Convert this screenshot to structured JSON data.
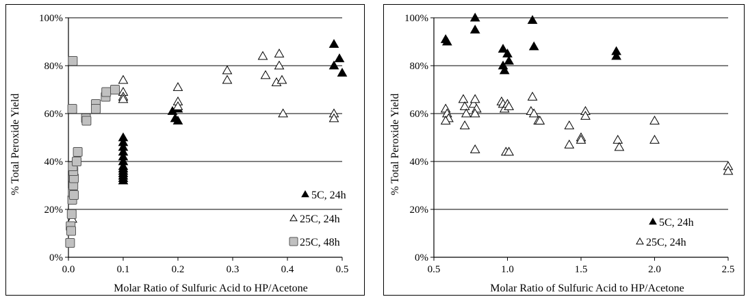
{
  "chart_data": [
    {
      "type": "scatter",
      "xlabel": "Molar Ratio of Sulfuric Acid to HP/Acetone",
      "ylabel": "% Total Peroxide Yield",
      "xlim": [
        0,
        0.5
      ],
      "ylim": [
        0,
        100
      ],
      "x_ticks": [
        "0.0",
        "0.1",
        "0.2",
        "0.3",
        "0.4",
        "0.5"
      ],
      "y_ticks": [
        "0%",
        "20%",
        "40%",
        "60%",
        "80%",
        "100%"
      ],
      "grid": "horizontal",
      "legend_position": "bottom-right",
      "series": [
        {
          "name": "5C, 24h",
          "marker": "filled-triangle",
          "color": "#000000",
          "points": [
            [
              0.1,
              50
            ],
            [
              0.1,
              48
            ],
            [
              0.1,
              46
            ],
            [
              0.1,
              44
            ],
            [
              0.1,
              42
            ],
            [
              0.1,
              40
            ],
            [
              0.1,
              38
            ],
            [
              0.1,
              37
            ],
            [
              0.1,
              36
            ],
            [
              0.1,
              35
            ],
            [
              0.1,
              34
            ],
            [
              0.1,
              33
            ],
            [
              0.1,
              32
            ],
            [
              0.19,
              61
            ],
            [
              0.195,
              58
            ],
            [
              0.2,
              57
            ],
            [
              0.2,
              62
            ],
            [
              0.485,
              89
            ],
            [
              0.485,
              80
            ],
            [
              0.495,
              83
            ],
            [
              0.5,
              77
            ]
          ]
        },
        {
          "name": "25C, 24h",
          "marker": "open-triangle",
          "color": "#000000",
          "points": [
            [
              0.007,
              16
            ],
            [
              0.1,
              74
            ],
            [
              0.1,
              69
            ],
            [
              0.1,
              67
            ],
            [
              0.1,
              66
            ],
            [
              0.2,
              71
            ],
            [
              0.2,
              65
            ],
            [
              0.2,
              63
            ],
            [
              0.29,
              78
            ],
            [
              0.29,
              74
            ],
            [
              0.355,
              84
            ],
            [
              0.36,
              76
            ],
            [
              0.385,
              85
            ],
            [
              0.385,
              80
            ],
            [
              0.38,
              73
            ],
            [
              0.39,
              74
            ],
            [
              0.392,
              60
            ],
            [
              0.485,
              60
            ],
            [
              0.485,
              58
            ]
          ]
        },
        {
          "name": "25C, 48h",
          "marker": "gray-square",
          "color": "#c0c0c0",
          "points": [
            [
              0.003,
              6
            ],
            [
              0.004,
              13
            ],
            [
              0.005,
              11
            ],
            [
              0.006,
              18
            ],
            [
              0.007,
              24
            ],
            [
              0.008,
              27
            ],
            [
              0.009,
              30
            ],
            [
              0.01,
              33
            ],
            [
              0.009,
              36
            ],
            [
              0.008,
              38
            ],
            [
              0.01,
              26
            ],
            [
              0.008,
              82
            ],
            [
              0.007,
              62
            ],
            [
              0.015,
              40
            ],
            [
              0.017,
              44
            ],
            [
              0.032,
              58
            ],
            [
              0.033,
              57
            ],
            [
              0.05,
              64
            ],
            [
              0.05,
              62
            ],
            [
              0.068,
              67
            ],
            [
              0.069,
              69
            ],
            [
              0.085,
              70
            ]
          ]
        }
      ]
    },
    {
      "type": "scatter",
      "xlabel": "Molar Ratio of Sulfuric Acid to HP/Acetone",
      "ylabel": "% Total Peroxide Yield",
      "xlim": [
        0.5,
        2.5
      ],
      "ylim": [
        0,
        100
      ],
      "x_ticks": [
        "0.5",
        "1.0",
        "1.5",
        "2.0",
        "2.5"
      ],
      "y_ticks": [
        "0%",
        "20%",
        "40%",
        "60%",
        "80%",
        "100%"
      ],
      "grid": "horizontal",
      "legend_position": "bottom-right",
      "series": [
        {
          "name": "5C, 24h",
          "marker": "filled-triangle",
          "color": "#000000",
          "points": [
            [
              0.58,
              91
            ],
            [
              0.59,
              90
            ],
            [
              0.78,
              100
            ],
            [
              0.78,
              95
            ],
            [
              0.97,
              87
            ],
            [
              0.97,
              80
            ],
            [
              0.98,
              78
            ],
            [
              1.0,
              85
            ],
            [
              1.01,
              82
            ],
            [
              1.17,
              99
            ],
            [
              1.18,
              88
            ],
            [
              1.74,
              86
            ],
            [
              1.74,
              84
            ]
          ]
        },
        {
          "name": "25C, 24h",
          "marker": "open-triangle",
          "color": "#000000",
          "points": [
            [
              0.58,
              62
            ],
            [
              0.59,
              60
            ],
            [
              0.6,
              58
            ],
            [
              0.58,
              57
            ],
            [
              0.7,
              66
            ],
            [
              0.71,
              63
            ],
            [
              0.72,
              60
            ],
            [
              0.71,
              55
            ],
            [
              0.77,
              64
            ],
            [
              0.78,
              66
            ],
            [
              0.79,
              62
            ],
            [
              0.78,
              60
            ],
            [
              0.78,
              45
            ],
            [
              0.96,
              65
            ],
            [
              0.97,
              64
            ],
            [
              0.98,
              62
            ],
            [
              1.0,
              64
            ],
            [
              1.01,
              63
            ],
            [
              0.99,
              44
            ],
            [
              1.01,
              44
            ],
            [
              1.16,
              61
            ],
            [
              1.17,
              67
            ],
            [
              1.18,
              60
            ],
            [
              1.21,
              57
            ],
            [
              1.22,
              57
            ],
            [
              1.42,
              55
            ],
            [
              1.42,
              47
            ],
            [
              1.5,
              50
            ],
            [
              1.5,
              49
            ],
            [
              1.53,
              61
            ],
            [
              1.53,
              59
            ],
            [
              1.75,
              49
            ],
            [
              1.76,
              46
            ],
            [
              2.0,
              57
            ],
            [
              2.0,
              49
            ],
            [
              2.5,
              38
            ],
            [
              2.5,
              36
            ]
          ]
        }
      ]
    }
  ]
}
